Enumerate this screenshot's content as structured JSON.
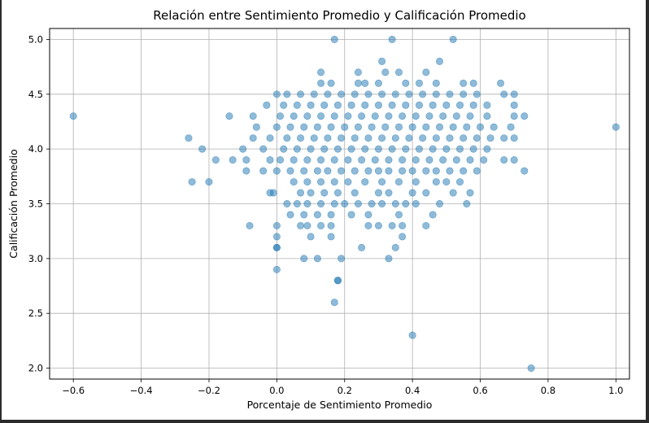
{
  "chart_data": {
    "type": "scatter",
    "title": "Relación entre Sentimiento Promedio y Calificación Promedio",
    "xlabel": "Porcentaje de Sentimiento Promedio",
    "ylabel": "Calificación Promedio",
    "xlim": [
      -0.67,
      1.04
    ],
    "ylim": [
      1.9,
      5.1
    ],
    "xticks": [
      "−0.6",
      "−0.4",
      "−0.2",
      "0.0",
      "0.2",
      "0.4",
      "0.6",
      "0.8",
      "1.0"
    ],
    "xtick_values": [
      -0.6,
      -0.4,
      -0.2,
      0.0,
      0.2,
      0.4,
      0.6,
      0.8,
      1.0
    ],
    "yticks": [
      "2.0",
      "2.5",
      "3.0",
      "3.5",
      "4.0",
      "4.5",
      "5.0"
    ],
    "ytick_values": [
      2.0,
      2.5,
      3.0,
      3.5,
      4.0,
      4.5,
      5.0
    ],
    "grid": true,
    "marker_color": "#1f77b4",
    "marker_alpha": 0.5,
    "points": [
      [
        -0.6,
        4.3
      ],
      [
        1.0,
        4.2
      ],
      [
        0.75,
        2.0
      ],
      [
        0.4,
        2.3
      ],
      [
        0.17,
        5.0
      ],
      [
        0.34,
        5.0
      ],
      [
        0.52,
        5.0
      ],
      [
        0.17,
        2.6
      ],
      [
        0.18,
        2.8
      ],
      [
        0.18,
        2.8
      ],
      [
        0.0,
        2.9
      ],
      [
        0.08,
        3.0
      ],
      [
        0.12,
        3.0
      ],
      [
        0.19,
        3.0
      ],
      [
        0.33,
        3.0
      ],
      [
        0.0,
        3.1
      ],
      [
        0.0,
        3.1
      ],
      [
        0.35,
        3.1
      ],
      [
        0.25,
        3.1
      ],
      [
        0.0,
        3.2
      ],
      [
        0.1,
        3.2
      ],
      [
        0.16,
        3.2
      ],
      [
        0.37,
        3.2
      ],
      [
        -0.08,
        3.3
      ],
      [
        0.0,
        3.3
      ],
      [
        0.07,
        3.3
      ],
      [
        0.09,
        3.3
      ],
      [
        0.13,
        3.3
      ],
      [
        0.16,
        3.3
      ],
      [
        0.27,
        3.3
      ],
      [
        0.3,
        3.3
      ],
      [
        0.34,
        3.3
      ],
      [
        0.37,
        3.3
      ],
      [
        0.44,
        3.3
      ],
      [
        0.04,
        3.4
      ],
      [
        0.08,
        3.4
      ],
      [
        0.12,
        3.4
      ],
      [
        0.16,
        3.4
      ],
      [
        0.22,
        3.4
      ],
      [
        0.27,
        3.4
      ],
      [
        0.36,
        3.4
      ],
      [
        0.46,
        3.4
      ],
      [
        -0.25,
        3.7
      ],
      [
        -0.2,
        3.7
      ],
      [
        0.73,
        3.8
      ],
      [
        0.56,
        3.5
      ],
      [
        0.38,
        3.5
      ],
      [
        0.48,
        3.5
      ],
      [
        -0.01,
        3.6
      ],
      [
        0.07,
        3.6
      ],
      [
        0.1,
        3.6
      ],
      [
        0.14,
        3.6
      ],
      [
        0.18,
        3.6
      ],
      [
        0.23,
        3.6
      ],
      [
        0.3,
        3.6
      ],
      [
        0.33,
        3.6
      ],
      [
        0.4,
        3.6
      ],
      [
        0.44,
        3.6
      ],
      [
        0.52,
        3.6
      ],
      [
        0.57,
        3.6
      ],
      [
        0.03,
        3.5
      ],
      [
        0.06,
        3.5
      ],
      [
        0.09,
        3.5
      ],
      [
        0.13,
        3.5
      ],
      [
        0.17,
        3.5
      ],
      [
        0.2,
        3.5
      ],
      [
        0.24,
        3.5
      ],
      [
        0.28,
        3.5
      ],
      [
        0.31,
        3.5
      ],
      [
        0.35,
        3.5
      ],
      [
        0.41,
        3.5
      ],
      [
        -0.02,
        3.6
      ],
      [
        0.05,
        3.7
      ],
      [
        0.09,
        3.7
      ],
      [
        0.13,
        3.7
      ],
      [
        0.17,
        3.7
      ],
      [
        0.21,
        3.7
      ],
      [
        0.26,
        3.7
      ],
      [
        0.31,
        3.7
      ],
      [
        0.36,
        3.7
      ],
      [
        0.41,
        3.7
      ],
      [
        0.47,
        3.7
      ],
      [
        0.5,
        3.7
      ],
      [
        0.54,
        3.7
      ],
      [
        -0.13,
        3.9
      ],
      [
        -0.09,
        3.8
      ],
      [
        -0.04,
        3.8
      ],
      [
        0.0,
        3.8
      ],
      [
        0.04,
        3.8
      ],
      [
        0.08,
        3.8
      ],
      [
        0.12,
        3.8
      ],
      [
        0.15,
        3.8
      ],
      [
        0.19,
        3.8
      ],
      [
        0.23,
        3.8
      ],
      [
        0.27,
        3.8
      ],
      [
        0.3,
        3.8
      ],
      [
        0.33,
        3.8
      ],
      [
        0.37,
        3.8
      ],
      [
        0.4,
        3.8
      ],
      [
        0.44,
        3.8
      ],
      [
        0.47,
        3.8
      ],
      [
        0.51,
        3.8
      ],
      [
        0.55,
        3.8
      ],
      [
        0.59,
        3.8
      ],
      [
        -0.18,
        3.9
      ],
      [
        -0.09,
        3.9
      ],
      [
        -0.02,
        3.9
      ],
      [
        0.01,
        3.9
      ],
      [
        0.05,
        3.9
      ],
      [
        0.09,
        3.9
      ],
      [
        0.13,
        3.9
      ],
      [
        0.17,
        3.9
      ],
      [
        0.21,
        3.9
      ],
      [
        0.25,
        3.9
      ],
      [
        0.29,
        3.9
      ],
      [
        0.33,
        3.9
      ],
      [
        0.37,
        3.9
      ],
      [
        0.41,
        3.9
      ],
      [
        0.45,
        3.9
      ],
      [
        0.49,
        3.9
      ],
      [
        0.53,
        3.9
      ],
      [
        0.57,
        3.9
      ],
      [
        0.61,
        3.9
      ],
      [
        0.67,
        3.9
      ],
      [
        0.7,
        3.9
      ],
      [
        -0.22,
        4.0
      ],
      [
        -0.1,
        4.0
      ],
      [
        -0.04,
        4.0
      ],
      [
        0.02,
        4.0
      ],
      [
        0.06,
        4.0
      ],
      [
        0.1,
        4.0
      ],
      [
        0.14,
        4.0
      ],
      [
        0.18,
        4.0
      ],
      [
        0.22,
        4.0
      ],
      [
        0.26,
        4.0
      ],
      [
        0.3,
        4.0
      ],
      [
        0.34,
        4.0
      ],
      [
        0.38,
        4.0
      ],
      [
        0.42,
        4.0
      ],
      [
        0.46,
        4.0
      ],
      [
        0.5,
        4.0
      ],
      [
        0.54,
        4.0
      ],
      [
        0.58,
        4.0
      ],
      [
        0.62,
        4.0
      ],
      [
        -0.26,
        4.1
      ],
      [
        -0.07,
        4.1
      ],
      [
        -0.02,
        4.1
      ],
      [
        0.03,
        4.1
      ],
      [
        0.07,
        4.1
      ],
      [
        0.11,
        4.1
      ],
      [
        0.15,
        4.1
      ],
      [
        0.19,
        4.1
      ],
      [
        0.23,
        4.1
      ],
      [
        0.27,
        4.1
      ],
      [
        0.31,
        4.1
      ],
      [
        0.35,
        4.1
      ],
      [
        0.39,
        4.1
      ],
      [
        0.43,
        4.1
      ],
      [
        0.47,
        4.1
      ],
      [
        0.51,
        4.1
      ],
      [
        0.55,
        4.1
      ],
      [
        0.59,
        4.1
      ],
      [
        0.63,
        4.1
      ],
      [
        0.67,
        4.1
      ],
      [
        0.7,
        4.1
      ],
      [
        -0.06,
        4.2
      ],
      [
        0.0,
        4.2
      ],
      [
        0.04,
        4.2
      ],
      [
        0.08,
        4.2
      ],
      [
        0.12,
        4.2
      ],
      [
        0.16,
        4.2
      ],
      [
        0.2,
        4.2
      ],
      [
        0.24,
        4.2
      ],
      [
        0.28,
        4.2
      ],
      [
        0.32,
        4.2
      ],
      [
        0.36,
        4.2
      ],
      [
        0.4,
        4.2
      ],
      [
        0.44,
        4.2
      ],
      [
        0.48,
        4.2
      ],
      [
        0.52,
        4.2
      ],
      [
        0.56,
        4.2
      ],
      [
        0.6,
        4.2
      ],
      [
        0.64,
        4.2
      ],
      [
        0.69,
        4.2
      ],
      [
        -0.14,
        4.3
      ],
      [
        -0.07,
        4.3
      ],
      [
        0.01,
        4.3
      ],
      [
        0.05,
        4.3
      ],
      [
        0.09,
        4.3
      ],
      [
        0.13,
        4.3
      ],
      [
        0.17,
        4.3
      ],
      [
        0.21,
        4.3
      ],
      [
        0.25,
        4.3
      ],
      [
        0.29,
        4.3
      ],
      [
        0.33,
        4.3
      ],
      [
        0.37,
        4.3
      ],
      [
        0.41,
        4.3
      ],
      [
        0.45,
        4.3
      ],
      [
        0.49,
        4.3
      ],
      [
        0.53,
        4.3
      ],
      [
        0.57,
        4.3
      ],
      [
        0.62,
        4.3
      ],
      [
        0.7,
        4.3
      ],
      [
        0.73,
        4.3
      ],
      [
        -0.03,
        4.4
      ],
      [
        0.02,
        4.4
      ],
      [
        0.06,
        4.4
      ],
      [
        0.1,
        4.4
      ],
      [
        0.14,
        4.4
      ],
      [
        0.18,
        4.4
      ],
      [
        0.22,
        4.4
      ],
      [
        0.26,
        4.4
      ],
      [
        0.3,
        4.4
      ],
      [
        0.34,
        4.4
      ],
      [
        0.38,
        4.4
      ],
      [
        0.42,
        4.4
      ],
      [
        0.46,
        4.4
      ],
      [
        0.5,
        4.4
      ],
      [
        0.54,
        4.4
      ],
      [
        0.58,
        4.4
      ],
      [
        0.62,
        4.4
      ],
      [
        0.7,
        4.4
      ],
      [
        0.0,
        4.5
      ],
      [
        0.03,
        4.5
      ],
      [
        0.07,
        4.5
      ],
      [
        0.11,
        4.5
      ],
      [
        0.15,
        4.5
      ],
      [
        0.19,
        4.5
      ],
      [
        0.23,
        4.5
      ],
      [
        0.27,
        4.5
      ],
      [
        0.31,
        4.5
      ],
      [
        0.35,
        4.5
      ],
      [
        0.39,
        4.5
      ],
      [
        0.43,
        4.5
      ],
      [
        0.47,
        4.5
      ],
      [
        0.51,
        4.5
      ],
      [
        0.55,
        4.5
      ],
      [
        0.59,
        4.5
      ],
      [
        0.67,
        4.5
      ],
      [
        0.7,
        4.5
      ],
      [
        0.13,
        4.6
      ],
      [
        0.16,
        4.6
      ],
      [
        0.24,
        4.6
      ],
      [
        0.26,
        4.6
      ],
      [
        0.3,
        4.6
      ],
      [
        0.38,
        4.6
      ],
      [
        0.42,
        4.6
      ],
      [
        0.47,
        4.6
      ],
      [
        0.55,
        4.6
      ],
      [
        0.58,
        4.6
      ],
      [
        0.66,
        4.6
      ],
      [
        0.13,
        4.7
      ],
      [
        0.24,
        4.7
      ],
      [
        0.32,
        4.7
      ],
      [
        0.36,
        4.7
      ],
      [
        0.44,
        4.7
      ],
      [
        0.31,
        4.8
      ],
      [
        0.48,
        4.8
      ]
    ]
  }
}
